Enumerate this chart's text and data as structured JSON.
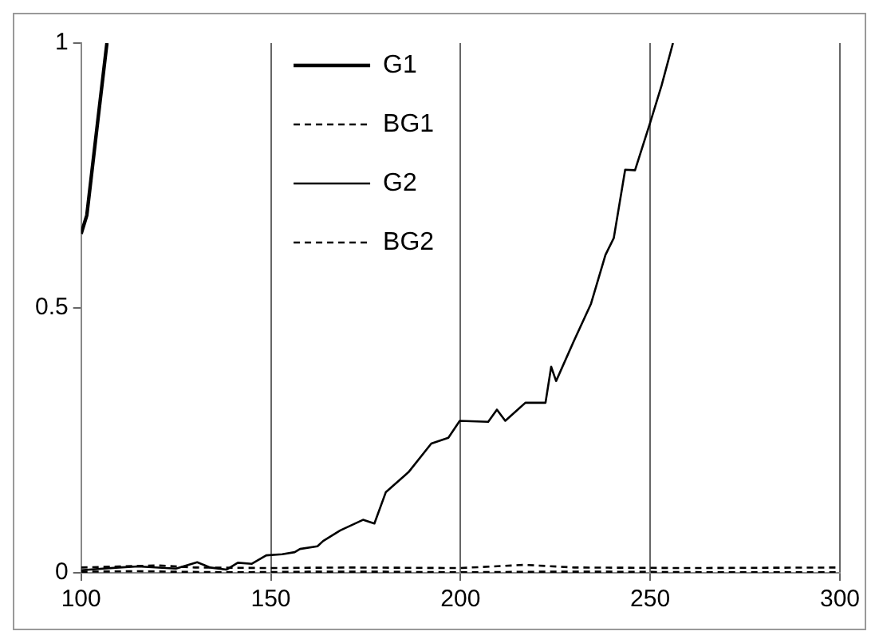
{
  "chart_data": {
    "type": "line",
    "xlim": [
      100,
      300
    ],
    "xticks": [
      100,
      150,
      200,
      250,
      300
    ],
    "ylim": [
      0,
      1
    ],
    "yticks": [
      0,
      0.5,
      1
    ],
    "grid": "x",
    "legend": "top",
    "marker": "none",
    "series": [
      {
        "name": "G1",
        "color": "#000000",
        "line_style": "solid",
        "x": [
          100,
          101.5,
          104.5,
          106.8
        ],
        "values": [
          0.64,
          0.675,
          0.86,
          1
        ]
      },
      {
        "name": "BG1",
        "color": "#000000",
        "line_style": "dashed",
        "x": [
          100,
          110,
          120,
          130,
          150,
          170,
          200,
          217,
          230,
          260,
          300
        ],
        "values": [
          0.01,
          0.012,
          0.014,
          0.01,
          0.009,
          0.01,
          0.009,
          0.015,
          0.01,
          0.009,
          0.01
        ]
      },
      {
        "name": "G2",
        "color": "#000000",
        "line_style": "solid",
        "x": [
          100,
          110,
          115,
          125,
          130.6,
          134,
          138.3,
          141.3,
          145,
          148.8,
          153,
          156.3,
          157.7,
          162.3,
          163.8,
          168.3,
          174.3,
          177.3,
          180.3,
          186.3,
          192.3,
          196.8,
          199.8,
          207.3,
          209.6,
          211.8,
          217.1,
          222.4,
          223.9,
          225.2,
          229.9,
          234.4,
          238.2,
          240.4,
          243.4,
          246,
          250,
          253,
          256
        ],
        "values": [
          0.005,
          0.01,
          0.012,
          0.008,
          0.02,
          0.01,
          0.006,
          0.019,
          0.017,
          0.033,
          0.035,
          0.039,
          0.045,
          0.05,
          0.06,
          0.08,
          0.1,
          0.093,
          0.152,
          0.19,
          0.244,
          0.255,
          0.287,
          0.285,
          0.308,
          0.287,
          0.321,
          0.321,
          0.389,
          0.362,
          0.438,
          0.508,
          0.6,
          0.632,
          0.761,
          0.76,
          0.85,
          0.92,
          1
        ]
      },
      {
        "name": "BG2",
        "color": "#000000",
        "line_style": "dashed",
        "x": [
          100,
          115,
          125,
          140,
          160,
          180,
          200,
          220,
          240,
          270,
          300
        ],
        "values": [
          0.002,
          0.003,
          0.002,
          0.001,
          0.002,
          0.002,
          0.001,
          0.002,
          0.002,
          0.001,
          0.001
        ]
      }
    ]
  }
}
